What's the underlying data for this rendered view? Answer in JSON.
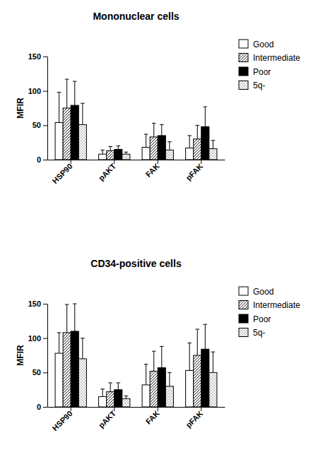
{
  "chart_data": [
    {
      "type": "bar",
      "title": "Mononuclear cells",
      "y_label": "MFIR",
      "categories": [
        "HSP90",
        "pAKT",
        "FAK",
        "pFAK"
      ],
      "series": [
        {
          "name": "Good",
          "color": "#ffffff",
          "values": [
            54,
            8,
            18,
            17
          ],
          "errors": [
            44,
            6,
            19,
            18
          ]
        },
        {
          "name": "Intermediate",
          "color": "#ffffff",
          "values": [
            75,
            13,
            33,
            30
          ],
          "errors": [
            42,
            6,
            20,
            20
          ]
        },
        {
          "name": "Poor",
          "color": "#000000",
          "values": [
            79,
            15,
            35,
            48
          ],
          "errors": [
            35,
            5,
            16,
            29
          ]
        },
        {
          "name": "5q-",
          "color": "#ffffff",
          "values": [
            51,
            8,
            14,
            16
          ],
          "errors": [
            31,
            3,
            12,
            12
          ]
        }
      ],
      "ylim": [
        0,
        150
      ],
      "yticks": [
        0,
        50,
        100,
        150
      ],
      "legend": "top-right"
    },
    {
      "type": "bar",
      "title": "CD34-positive cells",
      "y_label": "MFIR",
      "categories": [
        "HSP90",
        "pAKT",
        "FAK",
        "pFAK"
      ],
      "series": [
        {
          "name": "Good",
          "color": "#ffffff",
          "values": [
            78,
            15,
            32,
            53
          ],
          "errors": [
            30,
            11,
            30,
            40
          ]
        },
        {
          "name": "Intermediate",
          "color": "#ffffff",
          "values": [
            108,
            22,
            52,
            75
          ],
          "errors": [
            41,
            13,
            29,
            38
          ]
        },
        {
          "name": "Poor",
          "color": "#000000",
          "values": [
            110,
            25,
            57,
            84
          ],
          "errors": [
            40,
            10,
            31,
            36
          ]
        },
        {
          "name": "5q-",
          "color": "#ffffff",
          "values": [
            70,
            12,
            30,
            50
          ],
          "errors": [
            30,
            4,
            20,
            30
          ]
        }
      ],
      "ylim": [
        0,
        150
      ],
      "yticks": [
        0,
        50,
        100,
        150
      ],
      "legend": "top-right"
    }
  ]
}
